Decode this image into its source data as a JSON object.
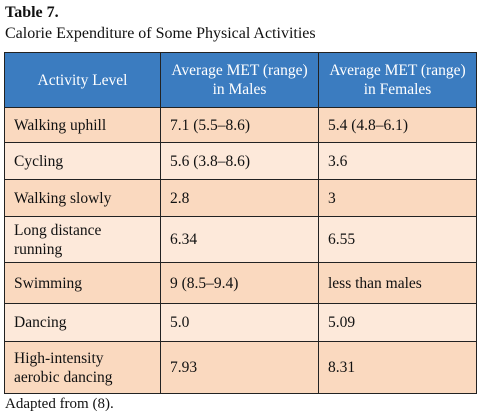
{
  "header": {
    "title": "Table 7.",
    "caption": "Calorie Expenditure of Some Physical Activities"
  },
  "table": {
    "columns": [
      "Activity Level",
      "Average MET (range) in Males",
      "Average MET (range) in Females"
    ],
    "rows": [
      [
        "Walking uphill",
        "7.1 (5.5–8.6)",
        "5.4 (4.8–6.1)"
      ],
      [
        "Cycling",
        "5.6 (3.8–8.6)",
        "3.6"
      ],
      [
        "Walking slowly",
        "2.8",
        "3"
      ],
      [
        "Long distance running",
        "6.34",
        "6.55"
      ],
      [
        "Swimming",
        "9 (8.5–9.4)",
        "less than males"
      ],
      [
        "Dancing",
        "5.0",
        "5.09"
      ],
      [
        "High-intensity aerobic dancing",
        "7.93",
        "8.31"
      ]
    ]
  },
  "footer": {
    "note": "Adapted from (8)."
  }
}
